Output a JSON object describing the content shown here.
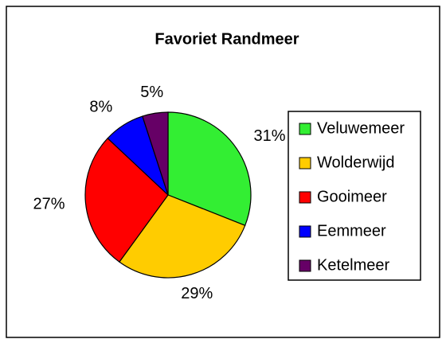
{
  "chart_data": {
    "type": "pie",
    "title": "Favoriet Randmeer",
    "categories": [
      "Veluwemeer",
      "Wolderwijd",
      "Gooimeer",
      "Eemmeer",
      "Ketelmeer"
    ],
    "values": [
      31,
      29,
      27,
      8,
      5
    ],
    "value_labels": [
      "31%",
      "29%",
      "27%",
      "8%",
      "5%"
    ],
    "colors": [
      "#33ee33",
      "#ffcc00",
      "#ff0000",
      "#0000ff",
      "#660066"
    ],
    "legend": "right"
  }
}
